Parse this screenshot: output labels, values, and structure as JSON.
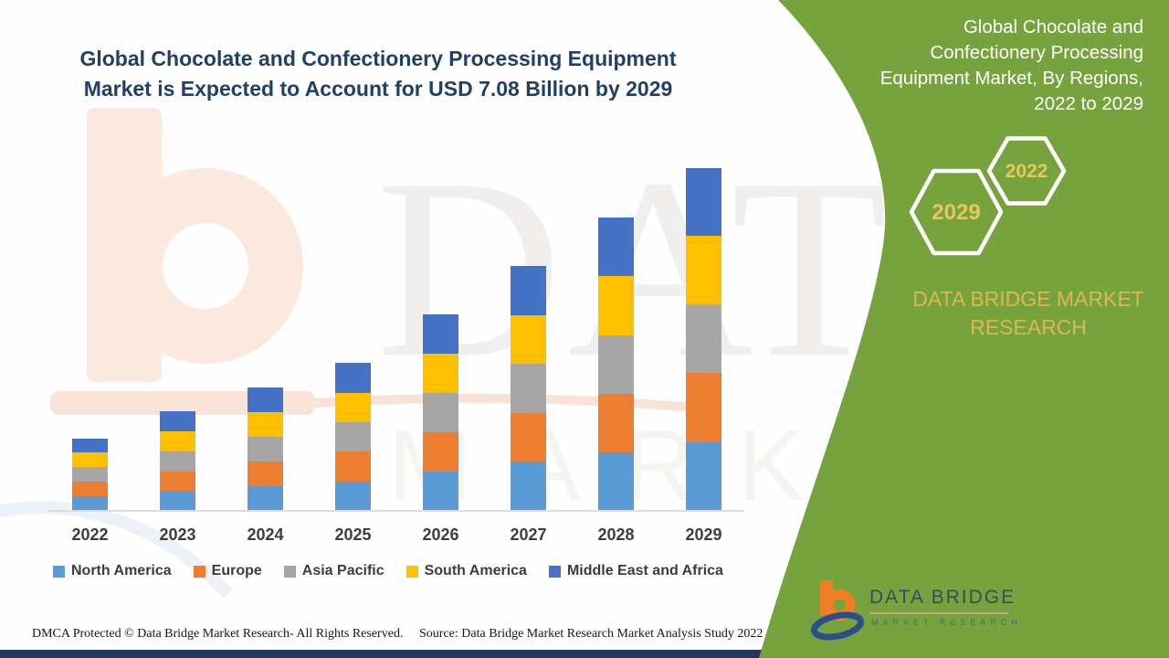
{
  "page": {
    "title_lines": [
      "Global Chocolate and Confectionery Processing Equipment",
      "Market is Expected to Account for USD 7.08 Billion by 2029"
    ]
  },
  "chart_data": {
    "type": "bar",
    "stacked": true,
    "title": "Global Chocolate and Confectionery Processing Equipment Market is Expected to Account for USD 7.08 Billion by 2029",
    "unit": "USD Billion",
    "categories": [
      "2022",
      "2023",
      "2024",
      "2025",
      "2026",
      "2027",
      "2028",
      "2029"
    ],
    "series": [
      {
        "name": "North America",
        "color": "#5B9BD5",
        "values": [
          0.3,
          0.41,
          0.51,
          0.61,
          0.81,
          1.01,
          1.21,
          1.42
        ]
      },
      {
        "name": "Europe",
        "color": "#ED7D31",
        "values": [
          0.3,
          0.41,
          0.51,
          0.61,
          0.81,
          1.01,
          1.21,
          1.42
        ]
      },
      {
        "name": "Asia Pacific",
        "color": "#A5A5A5",
        "values": [
          0.3,
          0.41,
          0.51,
          0.61,
          0.81,
          1.01,
          1.21,
          1.42
        ]
      },
      {
        "name": "South America",
        "color": "#FFC000",
        "values": [
          0.3,
          0.41,
          0.51,
          0.61,
          0.81,
          1.01,
          1.21,
          1.42
        ]
      },
      {
        "name": "Middle East and Africa",
        "color": "#4472C4",
        "values": [
          0.3,
          0.41,
          0.51,
          0.61,
          0.81,
          1.01,
          1.21,
          1.4
        ]
      }
    ],
    "totals": [
      1.5,
      2.05,
      2.55,
      3.05,
      4.05,
      5.05,
      6.05,
      7.08
    ],
    "ylim": [
      0,
      7.5
    ],
    "grid": false,
    "axis_labels_visible": false,
    "legend_position": "bottom"
  },
  "panel": {
    "heading_lines": [
      "Global Chocolate and",
      "Confectionery Processing",
      "Equipment Market, By Regions,",
      "2022 to 2029"
    ],
    "hexagons": [
      {
        "year": "2029"
      },
      {
        "year": "2022"
      }
    ],
    "brand_lines": [
      "DATA BRIDGE MARKET",
      "RESEARCH"
    ],
    "colors": {
      "panel_green": "#76A33E",
      "gold_text": "#DCB84E"
    }
  },
  "logo": {
    "name_text": "DATA BRIDGE",
    "sub_text": "MARKET RESEARCH"
  },
  "watermark": {
    "line1": "DATA BRIDGE",
    "line2": "MARKET RESEARCH"
  },
  "footer": {
    "dmca": "DMCA Protected © Data Bridge Market Research- All Rights Reserved.",
    "source": "Source: Data Bridge Market Research Market Analysis Study 2022"
  }
}
